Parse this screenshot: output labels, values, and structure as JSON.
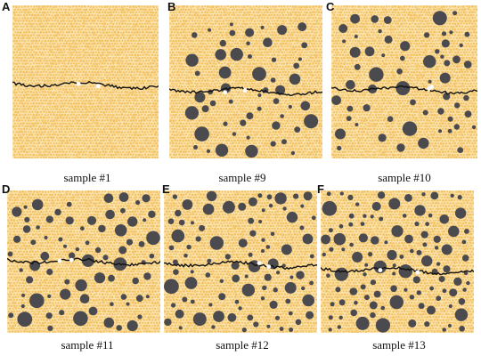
{
  "figure": {
    "panels": [
      {
        "letter": "A",
        "caption": "sample #1",
        "seed": 11
      },
      {
        "letter": "B",
        "caption": "sample #9",
        "seed": 29
      },
      {
        "letter": "C",
        "caption": "sample #10",
        "seed": 37
      },
      {
        "letter": "D",
        "caption": "sample #11",
        "seed": 43
      },
      {
        "letter": "E",
        "caption": "sample #12",
        "seed": 53
      },
      {
        "letter": "F",
        "caption": "sample #13",
        "seed": 61
      }
    ],
    "colors": {
      "matrix": "#f2c264",
      "matrix_light": "#fbe3ad",
      "inclusion": "#4a4a4f",
      "crack": "#111111",
      "pore": "#ffffff"
    }
  }
}
